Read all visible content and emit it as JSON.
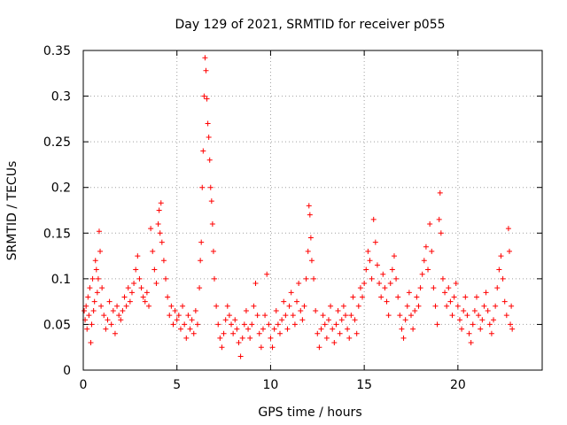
{
  "chart_data": {
    "type": "scatter",
    "title": "Day 129 of 2021, SRMTID for receiver p055",
    "xlabel": "GPS time / hours",
    "ylabel": "SRMTID / TECUs",
    "xlim": [
      0,
      24.5
    ],
    "ylim": [
      0,
      0.35
    ],
    "x_ticks": [
      0,
      5,
      10,
      15,
      20
    ],
    "x_tick_labels": [
      "0",
      "5",
      "10",
      "15",
      "20"
    ],
    "y_ticks": [
      0,
      0.05,
      0.1,
      0.15,
      0.2,
      0.25,
      0.3,
      0.35
    ],
    "y_tick_labels": [
      "0",
      "0.05",
      "0.1",
      "0.15",
      "0.2",
      "0.25",
      "0.3",
      "0.35"
    ],
    "grid": true,
    "marker": "+",
    "marker_color": "#ff0000",
    "series": [
      {
        "name": "SRMTID",
        "points": [
          [
            0.05,
            0.065
          ],
          [
            0.1,
            0.055
          ],
          [
            0.15,
            0.07
          ],
          [
            0.2,
            0.045
          ],
          [
            0.25,
            0.08
          ],
          [
            0.3,
            0.06
          ],
          [
            0.35,
            0.09
          ],
          [
            0.4,
            0.03
          ],
          [
            0.45,
            0.05
          ],
          [
            0.5,
            0.1
          ],
          [
            0.55,
            0.065
          ],
          [
            0.6,
            0.075
          ],
          [
            0.65,
            0.12
          ],
          [
            0.7,
            0.11
          ],
          [
            0.75,
            0.085
          ],
          [
            0.8,
            0.1
          ],
          [
            0.85,
            0.152
          ],
          [
            0.9,
            0.13
          ],
          [
            0.95,
            0.07
          ],
          [
            1.0,
            0.09
          ],
          [
            1.1,
            0.06
          ],
          [
            1.2,
            0.045
          ],
          [
            1.3,
            0.055
          ],
          [
            1.4,
            0.075
          ],
          [
            1.5,
            0.05
          ],
          [
            1.6,
            0.065
          ],
          [
            1.7,
            0.04
          ],
          [
            1.8,
            0.07
          ],
          [
            1.9,
            0.06
          ],
          [
            2.0,
            0.055
          ],
          [
            2.1,
            0.065
          ],
          [
            2.2,
            0.08
          ],
          [
            2.3,
            0.07
          ],
          [
            2.4,
            0.09
          ],
          [
            2.5,
            0.075
          ],
          [
            2.6,
            0.085
          ],
          [
            2.7,
            0.095
          ],
          [
            2.8,
            0.11
          ],
          [
            2.9,
            0.125
          ],
          [
            3.0,
            0.1
          ],
          [
            3.1,
            0.09
          ],
          [
            3.2,
            0.08
          ],
          [
            3.3,
            0.075
          ],
          [
            3.4,
            0.085
          ],
          [
            3.5,
            0.07
          ],
          [
            3.6,
            0.155
          ],
          [
            3.7,
            0.13
          ],
          [
            3.8,
            0.11
          ],
          [
            3.9,
            0.095
          ],
          [
            4.0,
            0.16
          ],
          [
            4.05,
            0.175
          ],
          [
            4.1,
            0.15
          ],
          [
            4.15,
            0.183
          ],
          [
            4.2,
            0.14
          ],
          [
            4.3,
            0.12
          ],
          [
            4.4,
            0.1
          ],
          [
            4.5,
            0.08
          ],
          [
            4.6,
            0.06
          ],
          [
            4.7,
            0.07
          ],
          [
            4.8,
            0.05
          ],
          [
            4.9,
            0.065
          ],
          [
            5.0,
            0.055
          ],
          [
            5.1,
            0.06
          ],
          [
            5.2,
            0.045
          ],
          [
            5.3,
            0.07
          ],
          [
            5.4,
            0.05
          ],
          [
            5.5,
            0.035
          ],
          [
            5.6,
            0.06
          ],
          [
            5.7,
            0.045
          ],
          [
            5.8,
            0.055
          ],
          [
            5.9,
            0.04
          ],
          [
            6.0,
            0.065
          ],
          [
            6.1,
            0.05
          ],
          [
            6.2,
            0.09
          ],
          [
            6.25,
            0.12
          ],
          [
            6.3,
            0.14
          ],
          [
            6.35,
            0.2
          ],
          [
            6.4,
            0.24
          ],
          [
            6.45,
            0.3
          ],
          [
            6.5,
            0.342
          ],
          [
            6.55,
            0.328
          ],
          [
            6.6,
            0.297
          ],
          [
            6.65,
            0.27
          ],
          [
            6.7,
            0.255
          ],
          [
            6.75,
            0.23
          ],
          [
            6.8,
            0.2
          ],
          [
            6.85,
            0.185
          ],
          [
            6.9,
            0.16
          ],
          [
            6.95,
            0.13
          ],
          [
            7.0,
            0.1
          ],
          [
            7.1,
            0.07
          ],
          [
            7.2,
            0.05
          ],
          [
            7.3,
            0.035
          ],
          [
            7.4,
            0.025
          ],
          [
            7.5,
            0.04
          ],
          [
            7.6,
            0.055
          ],
          [
            7.7,
            0.07
          ],
          [
            7.8,
            0.06
          ],
          [
            7.9,
            0.05
          ],
          [
            8.0,
            0.04
          ],
          [
            8.1,
            0.055
          ],
          [
            8.2,
            0.045
          ],
          [
            8.3,
            0.03
          ],
          [
            8.4,
            0.015
          ],
          [
            8.5,
            0.035
          ],
          [
            8.6,
            0.05
          ],
          [
            8.7,
            0.065
          ],
          [
            8.8,
            0.045
          ],
          [
            8.9,
            0.035
          ],
          [
            9.0,
            0.05
          ],
          [
            9.1,
            0.07
          ],
          [
            9.2,
            0.095
          ],
          [
            9.3,
            0.06
          ],
          [
            9.4,
            0.04
          ],
          [
            9.5,
            0.025
          ],
          [
            9.6,
            0.045
          ],
          [
            9.7,
            0.06
          ],
          [
            9.8,
            0.105
          ],
          [
            9.9,
            0.05
          ],
          [
            10.0,
            0.035
          ],
          [
            10.1,
            0.025
          ],
          [
            10.2,
            0.045
          ],
          [
            10.3,
            0.065
          ],
          [
            10.4,
            0.05
          ],
          [
            10.5,
            0.04
          ],
          [
            10.6,
            0.055
          ],
          [
            10.7,
            0.075
          ],
          [
            10.8,
            0.06
          ],
          [
            10.9,
            0.045
          ],
          [
            11.0,
            0.07
          ],
          [
            11.1,
            0.085
          ],
          [
            11.2,
            0.06
          ],
          [
            11.3,
            0.05
          ],
          [
            11.4,
            0.075
          ],
          [
            11.5,
            0.095
          ],
          [
            11.6,
            0.065
          ],
          [
            11.7,
            0.055
          ],
          [
            11.8,
            0.07
          ],
          [
            11.9,
            0.1
          ],
          [
            12.0,
            0.13
          ],
          [
            12.05,
            0.18
          ],
          [
            12.1,
            0.17
          ],
          [
            12.15,
            0.145
          ],
          [
            12.2,
            0.12
          ],
          [
            12.3,
            0.1
          ],
          [
            12.4,
            0.065
          ],
          [
            12.5,
            0.04
          ],
          [
            12.6,
            0.025
          ],
          [
            12.7,
            0.045
          ],
          [
            12.8,
            0.06
          ],
          [
            12.9,
            0.05
          ],
          [
            13.0,
            0.035
          ],
          [
            13.1,
            0.055
          ],
          [
            13.2,
            0.07
          ],
          [
            13.3,
            0.045
          ],
          [
            13.4,
            0.03
          ],
          [
            13.5,
            0.05
          ],
          [
            13.6,
            0.065
          ],
          [
            13.7,
            0.04
          ],
          [
            13.8,
            0.055
          ],
          [
            13.9,
            0.07
          ],
          [
            14.0,
            0.06
          ],
          [
            14.1,
            0.045
          ],
          [
            14.2,
            0.035
          ],
          [
            14.3,
            0.06
          ],
          [
            14.4,
            0.08
          ],
          [
            14.5,
            0.055
          ],
          [
            14.6,
            0.04
          ],
          [
            14.7,
            0.07
          ],
          [
            14.8,
            0.09
          ],
          [
            14.9,
            0.08
          ],
          [
            15.0,
            0.095
          ],
          [
            15.1,
            0.11
          ],
          [
            15.2,
            0.13
          ],
          [
            15.3,
            0.12
          ],
          [
            15.4,
            0.1
          ],
          [
            15.5,
            0.165
          ],
          [
            15.6,
            0.14
          ],
          [
            15.7,
            0.115
          ],
          [
            15.8,
            0.095
          ],
          [
            15.9,
            0.08
          ],
          [
            16.0,
            0.105
          ],
          [
            16.1,
            0.09
          ],
          [
            16.2,
            0.075
          ],
          [
            16.3,
            0.06
          ],
          [
            16.4,
            0.095
          ],
          [
            16.5,
            0.11
          ],
          [
            16.6,
            0.125
          ],
          [
            16.7,
            0.1
          ],
          [
            16.8,
            0.08
          ],
          [
            16.9,
            0.06
          ],
          [
            17.0,
            0.045
          ],
          [
            17.1,
            0.035
          ],
          [
            17.2,
            0.055
          ],
          [
            17.3,
            0.07
          ],
          [
            17.4,
            0.085
          ],
          [
            17.5,
            0.06
          ],
          [
            17.6,
            0.045
          ],
          [
            17.7,
            0.065
          ],
          [
            17.8,
            0.08
          ],
          [
            17.9,
            0.07
          ],
          [
            18.0,
            0.09
          ],
          [
            18.1,
            0.105
          ],
          [
            18.2,
            0.12
          ],
          [
            18.3,
            0.135
          ],
          [
            18.4,
            0.11
          ],
          [
            18.5,
            0.16
          ],
          [
            18.6,
            0.13
          ],
          [
            18.7,
            0.09
          ],
          [
            18.8,
            0.07
          ],
          [
            18.9,
            0.05
          ],
          [
            19.0,
            0.165
          ],
          [
            19.05,
            0.194
          ],
          [
            19.1,
            0.15
          ],
          [
            19.2,
            0.1
          ],
          [
            19.3,
            0.085
          ],
          [
            19.4,
            0.07
          ],
          [
            19.5,
            0.09
          ],
          [
            19.6,
            0.075
          ],
          [
            19.7,
            0.06
          ],
          [
            19.8,
            0.08
          ],
          [
            19.9,
            0.095
          ],
          [
            20.0,
            0.07
          ],
          [
            20.1,
            0.055
          ],
          [
            20.2,
            0.045
          ],
          [
            20.3,
            0.065
          ],
          [
            20.4,
            0.08
          ],
          [
            20.5,
            0.06
          ],
          [
            20.6,
            0.04
          ],
          [
            20.7,
            0.03
          ],
          [
            20.8,
            0.05
          ],
          [
            20.9,
            0.065
          ],
          [
            21.0,
            0.08
          ],
          [
            21.1,
            0.06
          ],
          [
            21.2,
            0.045
          ],
          [
            21.3,
            0.055
          ],
          [
            21.4,
            0.07
          ],
          [
            21.5,
            0.085
          ],
          [
            21.6,
            0.065
          ],
          [
            21.7,
            0.05
          ],
          [
            21.8,
            0.04
          ],
          [
            21.9,
            0.055
          ],
          [
            22.0,
            0.07
          ],
          [
            22.1,
            0.09
          ],
          [
            22.2,
            0.11
          ],
          [
            22.3,
            0.125
          ],
          [
            22.4,
            0.1
          ],
          [
            22.5,
            0.075
          ],
          [
            22.6,
            0.06
          ],
          [
            22.7,
            0.155
          ],
          [
            22.75,
            0.13
          ],
          [
            22.8,
            0.05
          ],
          [
            22.85,
            0.07
          ],
          [
            22.9,
            0.045
          ]
        ]
      }
    ]
  }
}
